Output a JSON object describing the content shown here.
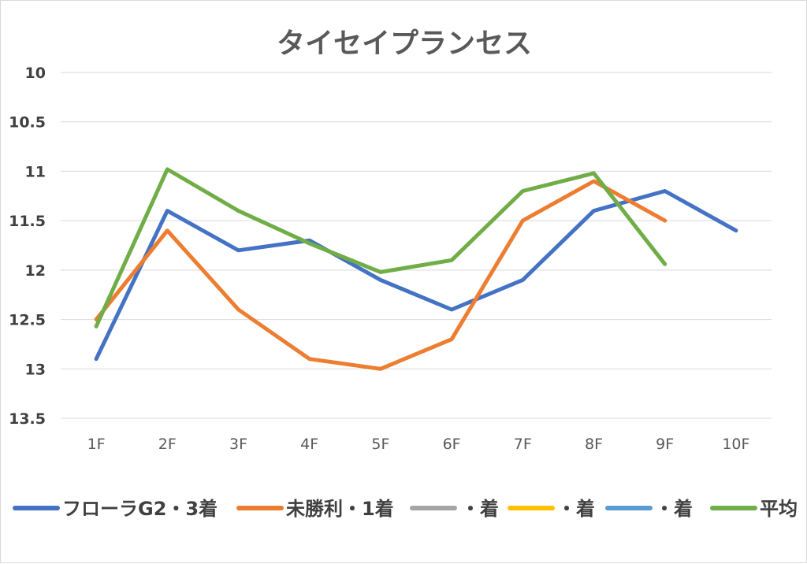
{
  "chart_data": {
    "type": "line",
    "title": "タイセイプランセス",
    "xlabel": "",
    "ylabel": "",
    "categories": [
      "1F",
      "2F",
      "3F",
      "4F",
      "5F",
      "6F",
      "7F",
      "8F",
      "9F",
      "10F"
    ],
    "y_axis": {
      "reversed": true,
      "ylim": [
        10,
        13.5
      ],
      "ticks": [
        "10",
        "10.5",
        "11",
        "11.5",
        "12",
        "12.5",
        "13",
        "13.5"
      ]
    },
    "grid": true,
    "legend_position": "bottom",
    "series": [
      {
        "name": "フローラG2・3着",
        "color": "#4472c4",
        "values": [
          12.9,
          11.4,
          11.8,
          11.7,
          12.1,
          12.4,
          12.1,
          11.4,
          11.2,
          11.6
        ]
      },
      {
        "name": "未勝利・1着",
        "color": "#ed7d31",
        "values": [
          12.5,
          11.6,
          12.4,
          12.9,
          13.0,
          12.7,
          11.5,
          11.1,
          11.5,
          null
        ]
      },
      {
        "name": "・着",
        "color": "#a5a5a5",
        "values": [
          null,
          null,
          null,
          null,
          null,
          null,
          null,
          null,
          null,
          null
        ]
      },
      {
        "name": "・着",
        "color": "#ffc000",
        "values": [
          null,
          null,
          null,
          null,
          null,
          null,
          null,
          null,
          null,
          null
        ]
      },
      {
        "name": "・着",
        "color": "#5b9bd5",
        "values": [
          null,
          null,
          null,
          null,
          null,
          null,
          null,
          null,
          null,
          null
        ]
      },
      {
        "name": "平均",
        "color": "#70ad47",
        "values": [
          12.57,
          10.98,
          11.4,
          11.73,
          12.02,
          11.9,
          11.2,
          11.02,
          11.94,
          null
        ]
      }
    ]
  }
}
